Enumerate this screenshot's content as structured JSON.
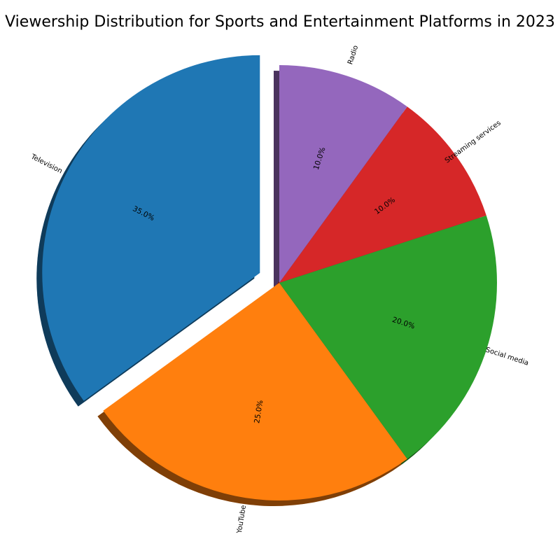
{
  "chart_data": {
    "type": "pie",
    "title": "Viewership Distribution for Sports and Entertainment Platforms in 2023",
    "categories": [
      "Television",
      "YouTube",
      "Social media",
      "Streaming services",
      "Radio"
    ],
    "values": [
      35,
      25,
      20,
      10,
      10
    ],
    "percent_labels": [
      "35.0%",
      "25.0%",
      "20.0%",
      "10.0%",
      "10.0%"
    ],
    "colors": [
      "#1f77b4",
      "#ff7f0e",
      "#2ca02c",
      "#d62728",
      "#9467bd"
    ],
    "explode": [
      0.1,
      0,
      0,
      0,
      0
    ],
    "start_angle_deg": 90,
    "direction": "counterclockwise",
    "shadow": true,
    "rotated_labels": true
  }
}
